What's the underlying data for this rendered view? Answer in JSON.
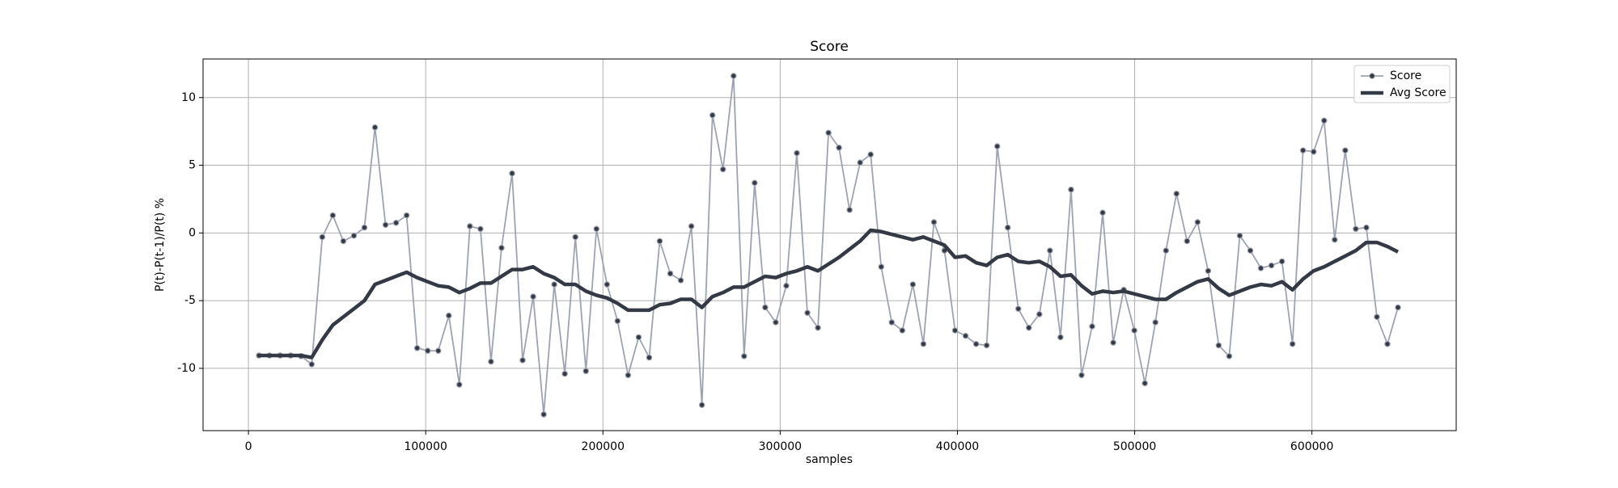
{
  "chart_data": {
    "type": "line",
    "title": "Score",
    "xlabel": "samples",
    "ylabel": "P(t)-P(t-1)/P(t) %",
    "x": [
      5950,
      11900,
      17850,
      23800,
      29750,
      35700,
      41650,
      47600,
      53550,
      59500,
      65450,
      71400,
      77350,
      83300,
      89250,
      95200,
      101150,
      107100,
      113050,
      119000,
      124950,
      130900,
      136850,
      142800,
      148750,
      154700,
      160650,
      166600,
      172550,
      178500,
      184450,
      190400,
      196350,
      202300,
      208250,
      214200,
      220150,
      226100,
      232050,
      238000,
      243950,
      249900,
      255850,
      261800,
      267750,
      273700,
      279650,
      285600,
      291550,
      297500,
      303450,
      309400,
      315350,
      321300,
      327250,
      333200,
      339150,
      345100,
      351050,
      357000,
      362950,
      368900,
      374850,
      380800,
      386750,
      392700,
      398650,
      404600,
      410550,
      416500,
      422450,
      428400,
      434350,
      440300,
      446250,
      452200,
      458150,
      464100,
      470050,
      476000,
      481950,
      487900,
      493850,
      499800,
      505750,
      511700,
      517650,
      523600,
      529550,
      535500,
      541450,
      547400,
      553350,
      559300,
      565250,
      571200,
      577150,
      583100,
      589050,
      595000,
      600950,
      606900,
      612850,
      618800,
      624750,
      630700,
      636650,
      642600,
      648550
    ],
    "series": [
      {
        "name": "Score",
        "color": "#9ea3b0",
        "marker_color": "#343a45",
        "values": [
          -9.05,
          -9.05,
          -9.05,
          -9.05,
          -9.1,
          -9.7,
          -0.3,
          1.3,
          -0.6,
          -0.2,
          0.4,
          7.8,
          0.6,
          0.75,
          1.3,
          -8.5,
          -8.7,
          -8.7,
          -6.1,
          -11.2,
          0.5,
          0.3,
          -9.5,
          -1.1,
          4.4,
          -9.4,
          -4.7,
          -13.4,
          -3.8,
          -10.4,
          -0.3,
          -10.2,
          0.3,
          -3.8,
          -6.5,
          -10.5,
          -7.7,
          -9.2,
          -0.6,
          -3.0,
          -3.5,
          0.5,
          -12.7,
          8.7,
          4.7,
          11.6,
          -9.1,
          3.7,
          -5.5,
          -6.6,
          -3.9,
          5.9,
          -5.9,
          -7.0,
          7.4,
          6.3,
          1.7,
          5.2,
          5.8,
          -2.5,
          -6.6,
          -7.2,
          -3.8,
          -8.2,
          0.8,
          -1.3,
          -7.2,
          -7.6,
          -8.2,
          -8.3,
          6.4,
          0.4,
          -5.6,
          -7.0,
          -6.0,
          -1.3,
          -7.7,
          3.2,
          -10.5,
          -6.9,
          1.5,
          -8.1,
          -4.2,
          -7.2,
          -11.1,
          -6.6,
          -1.3,
          2.9,
          -0.6,
          0.8,
          -2.8,
          -8.3,
          -9.1,
          -0.2,
          -1.3,
          -2.6,
          -2.4,
          -2.1,
          -8.2,
          6.1,
          6.0,
          8.3,
          -0.5,
          6.1,
          0.3,
          0.4,
          -6.2,
          -8.2,
          -5.5
        ]
      },
      {
        "name": "Avg Score",
        "color": "#343a45",
        "values": [
          -9.05,
          -9.05,
          -9.05,
          -9.05,
          -9.05,
          -9.2,
          -7.9,
          -6.8,
          -6.2,
          -5.6,
          -5.0,
          -3.8,
          -3.5,
          -3.2,
          -2.9,
          -3.3,
          -3.6,
          -3.9,
          -4.0,
          -4.4,
          -4.1,
          -3.7,
          -3.7,
          -3.2,
          -2.7,
          -2.7,
          -2.5,
          -3.0,
          -3.3,
          -3.8,
          -3.8,
          -4.3,
          -4.6,
          -4.8,
          -5.2,
          -5.7,
          -5.7,
          -5.7,
          -5.3,
          -5.2,
          -4.9,
          -4.9,
          -5.5,
          -4.7,
          -4.4,
          -4.0,
          -4.0,
          -3.6,
          -3.2,
          -3.3,
          -3.0,
          -2.8,
          -2.5,
          -2.8,
          -2.3,
          -1.8,
          -1.2,
          -0.6,
          0.2,
          0.1,
          -0.1,
          -0.3,
          -0.5,
          -0.3,
          -0.6,
          -0.9,
          -1.8,
          -1.7,
          -2.2,
          -2.4,
          -1.8,
          -1.6,
          -2.1,
          -2.2,
          -2.1,
          -2.5,
          -3.2,
          -3.1,
          -3.9,
          -4.5,
          -4.3,
          -4.4,
          -4.3,
          -4.5,
          -4.7,
          -4.9,
          -4.9,
          -4.4,
          -4.0,
          -3.6,
          -3.4,
          -4.1,
          -4.6,
          -4.3,
          -4.0,
          -3.8,
          -3.9,
          -3.6,
          -4.2,
          -3.4,
          -2.8,
          -2.5,
          -2.1,
          -1.7,
          -1.3,
          -0.7,
          -0.7,
          -1.0,
          -1.4
        ]
      }
    ],
    "xlim": [
      -25600,
      681400
    ],
    "xticks": [
      0,
      100000,
      200000,
      300000,
      400000,
      500000,
      600000
    ],
    "ylim": [
      -14.6,
      12.85
    ],
    "yticks": [
      -10,
      -5,
      0,
      5,
      10
    ],
    "grid": true,
    "legend": "upper right"
  }
}
